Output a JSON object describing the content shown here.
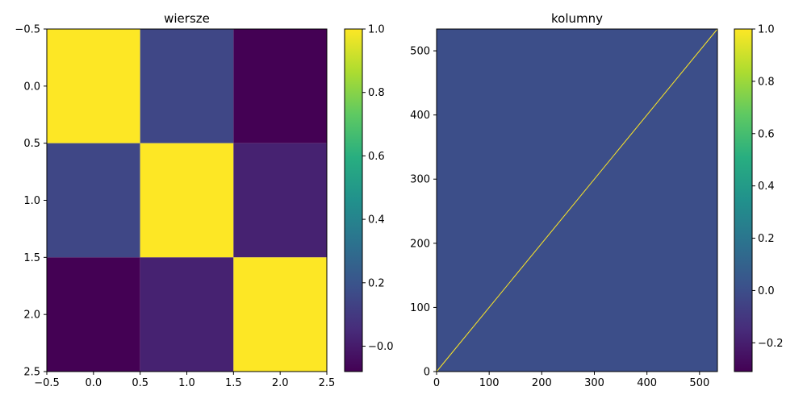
{
  "chart_data": [
    {
      "type": "heatmap",
      "title": "wiersze",
      "xlabel": "",
      "ylabel": "",
      "matrix": [
        [
          1.0,
          0.15,
          -0.08
        ],
        [
          0.15,
          1.0,
          0.02
        ],
        [
          -0.08,
          0.02,
          1.0
        ]
      ],
      "extent": {
        "x": [
          -0.5,
          2.5
        ],
        "y": [
          -0.5,
          2.5
        ]
      },
      "x_ticks": [
        -0.5,
        0.0,
        0.5,
        1.0,
        1.5,
        2.0,
        2.5
      ],
      "x_tick_labels": [
        "−0.5",
        "0.0",
        "0.5",
        "1.0",
        "1.5",
        "2.0",
        "2.5"
      ],
      "y_ticks": [
        -0.5,
        0.0,
        0.5,
        1.0,
        1.5,
        2.0,
        2.5
      ],
      "y_tick_labels": [
        "−0.5",
        "0.0",
        "0.5",
        "1.0",
        "1.5",
        "2.0",
        "2.5"
      ],
      "colorbar": {
        "range": [
          -0.08,
          1.0
        ],
        "ticks": [
          -0.0,
          0.2,
          0.4,
          0.6,
          0.8,
          1.0
        ],
        "tick_labels": [
          "−0.0",
          "0.2",
          "0.4",
          "0.6",
          "0.8",
          "1.0"
        ]
      },
      "colormap": "viridis"
    },
    {
      "type": "heatmap",
      "title": "kolumny",
      "xlabel": "",
      "ylabel": "",
      "size": 534,
      "diagonal_value": 1.0,
      "off_diagonal_value": 0.0,
      "extent": {
        "x": [
          0,
          534
        ],
        "y": [
          534,
          0
        ]
      },
      "x_ticks": [
        0,
        100,
        200,
        300,
        400,
        500
      ],
      "x_tick_labels": [
        "0",
        "100",
        "200",
        "300",
        "400",
        "500"
      ],
      "y_ticks": [
        0,
        100,
        200,
        300,
        400,
        500
      ],
      "y_tick_labels": [
        "0",
        "100",
        "200",
        "300",
        "400",
        "500"
      ],
      "colorbar": {
        "range": [
          -0.31,
          1.0
        ],
        "ticks": [
          -0.2,
          0.0,
          0.2,
          0.4,
          0.6,
          0.8,
          1.0
        ],
        "tick_labels": [
          "−0.2",
          "0.0",
          "0.2",
          "0.4",
          "0.6",
          "0.8",
          "1.0"
        ]
      },
      "colormap": "viridis"
    }
  ]
}
